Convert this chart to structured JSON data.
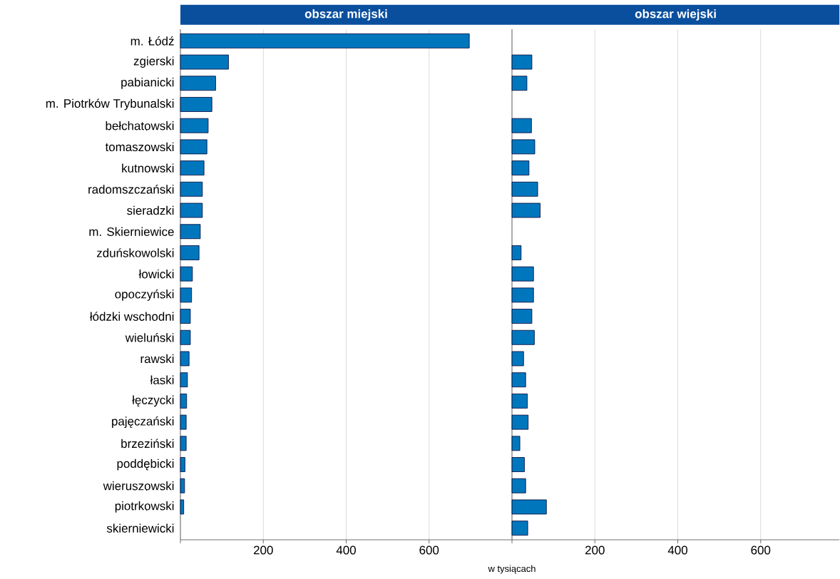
{
  "chart_data": [
    {
      "type": "bar",
      "orientation": "horizontal",
      "title": "obszar miejski",
      "xlabel": "w tysiącach",
      "categories": [
        "m. Łódź",
        "zgierski",
        "pabianicki",
        "m. Piotrków Trybunalski",
        "bełchatowski",
        "tomaszowski",
        "kutnowski",
        "radomszczański",
        "sieradzki",
        "m. Skierniewice",
        "zduńskowolski",
        "łowicki",
        "opoczyński",
        "łódzki wschodni",
        "wieluński",
        "rawski",
        "łaski",
        "łęczycki",
        "pajęczański",
        "brzeziński",
        "poddębicki",
        "wieruszowski",
        "piotrkowski",
        "skierniewicki"
      ],
      "values": [
        697,
        116,
        85,
        76,
        67,
        64,
        57,
        53,
        53,
        48,
        45,
        29,
        27,
        24,
        24,
        21,
        17,
        15,
        14,
        14,
        11,
        10,
        8,
        null
      ],
      "color": "#0077bd",
      "xlim": [
        0,
        800
      ],
      "xticks": [
        {
          "value": 0,
          "label": null
        },
        200,
        400,
        600
      ],
      "grid": "x"
    },
    {
      "type": "bar",
      "orientation": "horizontal",
      "title": "obszar wiejski",
      "tick_labels": "x",
      "categories": [
        null,
        null,
        null,
        null,
        null,
        null,
        null,
        null,
        null,
        null,
        null,
        null,
        null,
        null,
        null,
        null,
        null,
        null,
        null,
        null,
        null,
        null,
        null,
        null
      ],
      "values": [
        null,
        48,
        36,
        null,
        47,
        55,
        41,
        62,
        68,
        null,
        22,
        52,
        52,
        48,
        54,
        28,
        33,
        37,
        39,
        19,
        30,
        33,
        83,
        38
      ],
      "color": "#0077bd",
      "xlim": [
        0,
        790
      ],
      "xticks": [
        {
          "value": 0,
          "label": null
        },
        200,
        400,
        600
      ],
      "grid": "x"
    }
  ]
}
